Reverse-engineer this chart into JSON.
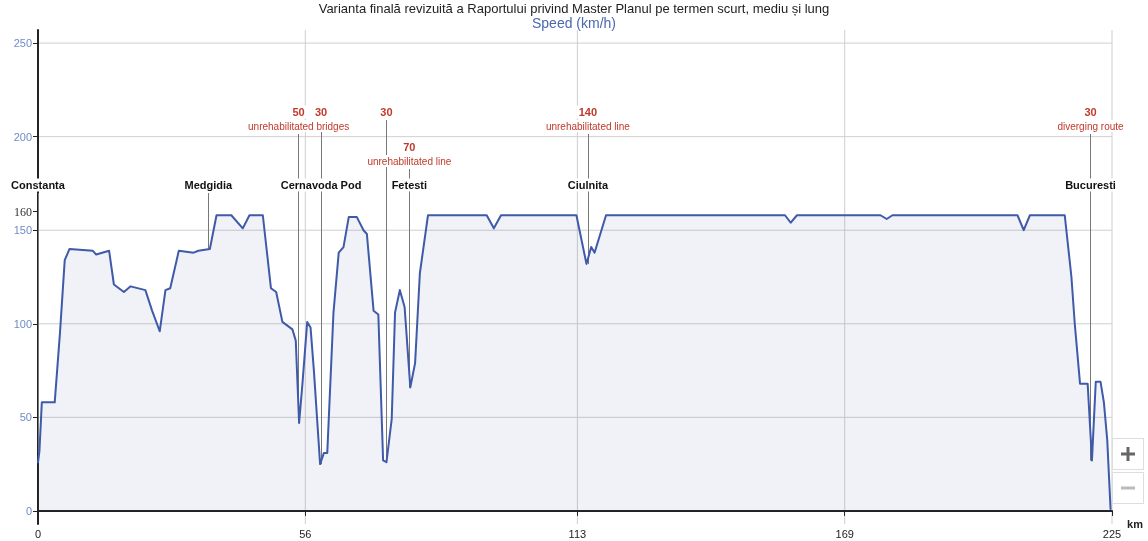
{
  "chart_data": {
    "type": "area",
    "title": "Varianta finală revizuită a Raportului privind Master Planul pe termen scurt, mediu și lung",
    "ylabel": "Speed (km/h)",
    "xlabel": "km",
    "xlim": [
      0,
      225
    ],
    "xticks": [
      0,
      56,
      113,
      169,
      225
    ],
    "ylim": [
      -7,
      257
    ],
    "yticks": [
      0,
      50,
      100,
      150,
      {
        "value": 160,
        "label": "160"
      },
      200,
      250
    ],
    "grid": true,
    "series": [
      {
        "color": "#3f5aa8",
        "x": [
          0,
          0.3,
          0.8,
          3.5,
          4.6,
          5.6,
          6.6,
          11.5,
          12.2,
          14.9,
          15.9,
          18,
          19.4,
          22.5,
          23.9,
          25.5,
          26.7,
          27.7,
          29.5,
          32.6,
          33.6,
          36,
          37.4,
          40.5,
          42.9,
          44.3,
          47.1,
          48.8,
          49.9,
          51.2,
          53.3,
          54,
          54.7,
          55.4,
          56.4,
          57.1,
          57.8,
          59.1,
          59.9,
          60.6,
          61.9,
          63,
          64,
          65.1,
          66.8,
          68.2,
          68.9,
          70.3,
          71.3,
          72.3,
          73,
          74.1,
          74.8,
          75.8,
          76.8,
          78,
          79,
          80,
          81.7,
          94,
          95.5,
          97,
          112.8,
          114.9,
          115.9,
          116.6,
          119,
          156.5,
          157.7,
          159,
          176.5,
          177.8,
          179,
          205.2,
          206.5,
          207.8,
          215.1,
          216.5,
          217.2,
          218.3,
          219.9,
          220.8,
          221.6,
          222.6,
          223.3,
          224,
          224.7
        ],
        "values": [
          26,
          32,
          58,
          58,
          95,
          134,
          140,
          139,
          137,
          139,
          121,
          117,
          120,
          118,
          107,
          96,
          118,
          119,
          139,
          138,
          139,
          140,
          158,
          158,
          151,
          158,
          158,
          119,
          117,
          101,
          97,
          91,
          47,
          68,
          101,
          98,
          75,
          25,
          31,
          31,
          106,
          138,
          141,
          157,
          157,
          150,
          148,
          107,
          105,
          27,
          26,
          49,
          106,
          118,
          109,
          66,
          79,
          127,
          158,
          158,
          151,
          158,
          158,
          132,
          141,
          138,
          158,
          158,
          154,
          158,
          158,
          156,
          158,
          158,
          150,
          158,
          158,
          125,
          100,
          68,
          68,
          27,
          69,
          69,
          58,
          38,
          1
        ]
      }
    ],
    "annotations": [
      {
        "text": "Constanta",
        "x": 0,
        "y": 26
      },
      {
        "text": "Medgidia",
        "x": 35.7,
        "y": 140
      },
      {
        "text": "Cernavoda Pod",
        "x": 59.3,
        "y": 25
      },
      {
        "text": "Fetesti",
        "x": 77.8,
        "y": 66
      },
      {
        "text": "Ciulnita",
        "x": 115.2,
        "y": 132
      },
      {
        "text": "Bucuresti",
        "x": 220.5,
        "y": 27
      },
      {
        "text": "50\nunrehabilitated bridges",
        "x": 54.6,
        "y": 47
      },
      {
        "text": "30",
        "x": 59.3,
        "y": 25
      },
      {
        "text": "30",
        "x": 73,
        "y": 26
      },
      {
        "text": "70\nunrehabilitated line",
        "x": 77.8,
        "y": 66
      },
      {
        "text": "140\nunrehabilitated line",
        "x": 115.2,
        "y": 132
      },
      {
        "text": "30\ndiverging route",
        "x": 220.5,
        "y": 27
      }
    ]
  }
}
